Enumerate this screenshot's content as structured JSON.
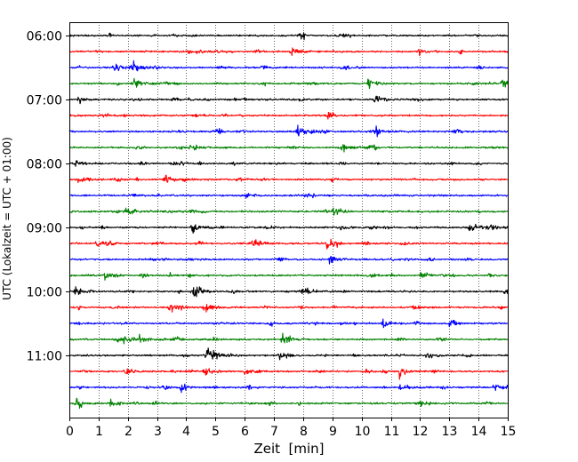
{
  "chart_data": {
    "type": "line",
    "title": "",
    "xlabel": "Zeit  [min]",
    "ylabel": "UTC (Lokalzeit = UTC + 01:00)",
    "xlim": [
      0,
      15
    ],
    "x_ticks": [
      0,
      1,
      2,
      3,
      4,
      5,
      6,
      7,
      8,
      9,
      10,
      11,
      12,
      13,
      14,
      15
    ],
    "y_tick_labels": [
      "06:00",
      "07:00",
      "08:00",
      "09:00",
      "10:00",
      "11:00"
    ],
    "y_tick_row_index": [
      0,
      4,
      8,
      12,
      16,
      20
    ],
    "vertical_grid": true,
    "grid_style": "dotted",
    "trace_colors": [
      "#000000",
      "#ff0000",
      "#0000ff",
      "#008000"
    ],
    "trace_count": 24,
    "trace_start_utc": "06:00",
    "trace_interval_min": 15,
    "events": [
      {
        "trace": 1,
        "x": 7.6,
        "amp": 0.55
      },
      {
        "trace": 1,
        "x": 11.9,
        "amp": 0.5
      },
      {
        "trace": 2,
        "x": 1.5,
        "amp": 0.45
      },
      {
        "trace": 2,
        "x": 2.2,
        "amp": 0.5
      },
      {
        "trace": 3,
        "x": 2.2,
        "amp": 0.55
      },
      {
        "trace": 3,
        "x": 10.2,
        "amp": 0.7
      },
      {
        "trace": 3,
        "x": 14.8,
        "amp": 0.6
      },
      {
        "trace": 4,
        "x": 0.3,
        "amp": 0.55
      },
      {
        "trace": 4,
        "x": 10.4,
        "amp": 0.6
      },
      {
        "trace": 6,
        "x": 7.8,
        "amp": 0.8
      },
      {
        "trace": 6,
        "x": 10.5,
        "amp": 0.5
      },
      {
        "trace": 7,
        "x": 9.3,
        "amp": 0.6
      },
      {
        "trace": 7,
        "x": 4.1,
        "amp": 0.4
      },
      {
        "trace": 8,
        "x": 0.2,
        "amp": 0.4
      },
      {
        "trace": 9,
        "x": 3.2,
        "amp": 0.5
      },
      {
        "trace": 9,
        "x": 0.3,
        "amp": 0.45
      },
      {
        "trace": 11,
        "x": 1.9,
        "amp": 0.6
      },
      {
        "trace": 11,
        "x": 9.0,
        "amp": 0.55
      },
      {
        "trace": 12,
        "x": 4.2,
        "amp": 0.65
      },
      {
        "trace": 12,
        "x": 13.7,
        "amp": 0.7
      },
      {
        "trace": 12,
        "x": 9.3,
        "amp": 0.4
      },
      {
        "trace": 13,
        "x": 6.3,
        "amp": 0.55
      },
      {
        "trace": 13,
        "x": 8.8,
        "amp": 0.6
      },
      {
        "trace": 13,
        "x": 0.9,
        "amp": 0.4
      },
      {
        "trace": 14,
        "x": 8.9,
        "amp": 0.5
      },
      {
        "trace": 15,
        "x": 1.2,
        "amp": 0.6
      },
      {
        "trace": 15,
        "x": 12.0,
        "amp": 0.45
      },
      {
        "trace": 16,
        "x": 4.2,
        "amp": 0.75
      },
      {
        "trace": 16,
        "x": 14.9,
        "amp": 0.65
      },
      {
        "trace": 16,
        "x": 0.2,
        "amp": 0.5
      },
      {
        "trace": 16,
        "x": 8.1,
        "amp": 0.45
      },
      {
        "trace": 17,
        "x": 3.4,
        "amp": 0.7
      },
      {
        "trace": 17,
        "x": 4.6,
        "amp": 0.6
      },
      {
        "trace": 18,
        "x": 10.7,
        "amp": 0.5
      },
      {
        "trace": 18,
        "x": 13.0,
        "amp": 0.45
      },
      {
        "trace": 19,
        "x": 7.3,
        "amp": 0.6
      },
      {
        "trace": 19,
        "x": 1.8,
        "amp": 0.4
      },
      {
        "trace": 19,
        "x": 2.4,
        "amp": 0.4
      },
      {
        "trace": 20,
        "x": 4.7,
        "amp": 0.85
      },
      {
        "trace": 20,
        "x": 7.2,
        "amp": 0.45
      },
      {
        "trace": 20,
        "x": 12.2,
        "amp": 0.45
      },
      {
        "trace": 21,
        "x": 11.3,
        "amp": 0.7
      },
      {
        "trace": 21,
        "x": 1.9,
        "amp": 0.5
      },
      {
        "trace": 21,
        "x": 4.6,
        "amp": 0.45
      },
      {
        "trace": 21,
        "x": 6.0,
        "amp": 0.45
      },
      {
        "trace": 22,
        "x": 3.8,
        "amp": 0.5
      },
      {
        "trace": 22,
        "x": 11.3,
        "amp": 0.55
      },
      {
        "trace": 22,
        "x": 14.5,
        "amp": 0.45
      },
      {
        "trace": 23,
        "x": 1.4,
        "amp": 0.5
      },
      {
        "trace": 23,
        "x": 12.0,
        "amp": 0.45
      },
      {
        "trace": 23,
        "x": 0.2,
        "amp": 0.4
      }
    ]
  }
}
